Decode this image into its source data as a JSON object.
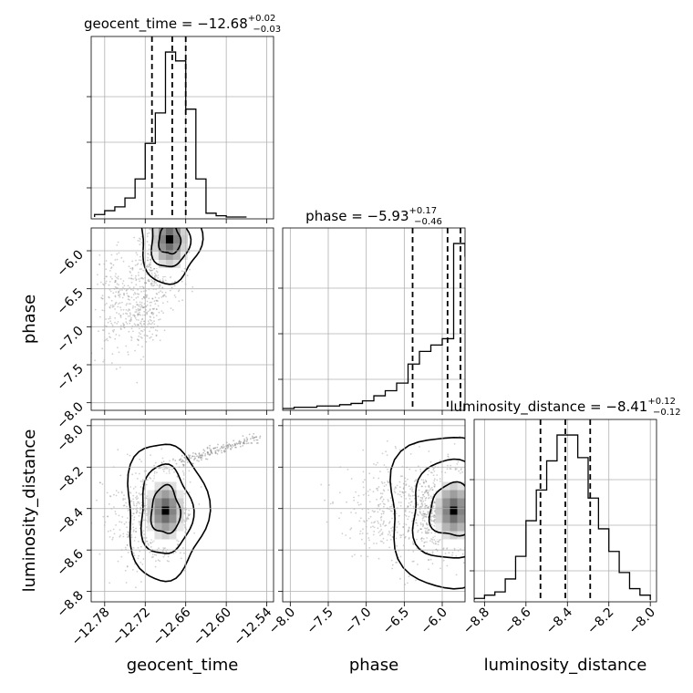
{
  "chart_data": {
    "type": "corner",
    "parameters": [
      "geocent_time",
      "phase",
      "luminosity_distance"
    ],
    "titles": [
      {
        "param": "geocent_time",
        "prefix": "geocent_time = ",
        "median": "−12.68",
        "plus": "+0.02",
        "minus": "−0.03"
      },
      {
        "param": "phase",
        "prefix": "phase = ",
        "median": "−5.93",
        "plus": "+0.17",
        "minus": "−0.46"
      },
      {
        "param": "luminosity_distance",
        "prefix": "luminosity_distance = ",
        "median": "−8.41",
        "plus": "+0.12",
        "minus": "−0.12"
      }
    ],
    "axes": {
      "geocent_time": {
        "range": [
          -12.8,
          -12.53
        ],
        "ticks": [
          "−12.78",
          "−12.72",
          "−12.66",
          "−12.60",
          "−12.54"
        ],
        "tick_values": [
          -12.78,
          -12.72,
          -12.66,
          -12.6,
          -12.54
        ]
      },
      "phase": {
        "range": [
          -8.1,
          -5.7
        ],
        "ticks": [
          "−8.0",
          "−7.5",
          "−7.0",
          "−6.5",
          "−6.0"
        ],
        "tick_values": [
          -8.0,
          -7.5,
          -7.0,
          -6.5,
          -6.0
        ]
      },
      "luminosity_distance": {
        "range": [
          -8.85,
          -7.97
        ],
        "ticks": [
          "−8.8",
          "−8.6",
          "−8.4",
          "−8.2",
          "−8.0"
        ],
        "tick_values": [
          -8.8,
          -8.6,
          -8.4,
          -8.2,
          -8.0
        ]
      }
    },
    "histograms": {
      "geocent_time": {
        "bin_edges": [
          -12.795,
          -12.78,
          -12.765,
          -12.75,
          -12.735,
          -12.72,
          -12.705,
          -12.69,
          -12.675,
          -12.66,
          -12.645,
          -12.63,
          -12.615,
          -12.6,
          -12.585,
          -12.57
        ],
        "counts": [
          2,
          5,
          8,
          15,
          30,
          58,
          82,
          130,
          123,
          85,
          30,
          3,
          1,
          0,
          0
        ],
        "quantiles": [
          -12.71,
          -12.68,
          -12.66
        ]
      },
      "phase": {
        "bin_edges": [
          -8.1,
          -7.95,
          -7.8,
          -7.65,
          -7.5,
          -7.35,
          -7.2,
          -7.05,
          -6.9,
          -6.75,
          -6.6,
          -6.45,
          -6.3,
          -6.15,
          -6.0,
          -5.85,
          -5.7
        ],
        "counts": [
          0,
          1,
          1,
          2,
          2,
          3,
          4,
          6,
          10,
          14,
          20,
          35,
          45,
          50,
          55,
          130
        ],
        "extra_last_count": 120,
        "quantiles": [
          -6.39,
          -5.93,
          -5.76
        ]
      },
      "luminosity_distance": {
        "bin_edges": [
          -8.85,
          -8.8,
          -8.75,
          -8.7,
          -8.65,
          -8.6,
          -8.55,
          -8.5,
          -8.45,
          -8.4,
          -8.35,
          -8.3,
          -8.25,
          -8.2,
          -8.15,
          -8.1,
          -8.05,
          -8.0
        ],
        "counts": [
          1,
          3,
          5,
          13,
          27,
          49,
          68,
          86,
          102,
          102,
          88,
          63,
          44,
          30,
          17,
          7,
          3
        ],
        "quantiles": [
          -8.53,
          -8.41,
          -8.29
        ]
      }
    },
    "pairs": [
      {
        "x": "geocent_time",
        "y": "phase"
      },
      {
        "x": "geocent_time",
        "y": "luminosity_distance"
      },
      {
        "x": "phase",
        "y": "luminosity_distance"
      }
    ],
    "grid": true,
    "colors": {
      "hist_line": "#000000",
      "quantile_line": "#000000",
      "scatter": "#777777",
      "grid": "#b0b0b0"
    }
  }
}
